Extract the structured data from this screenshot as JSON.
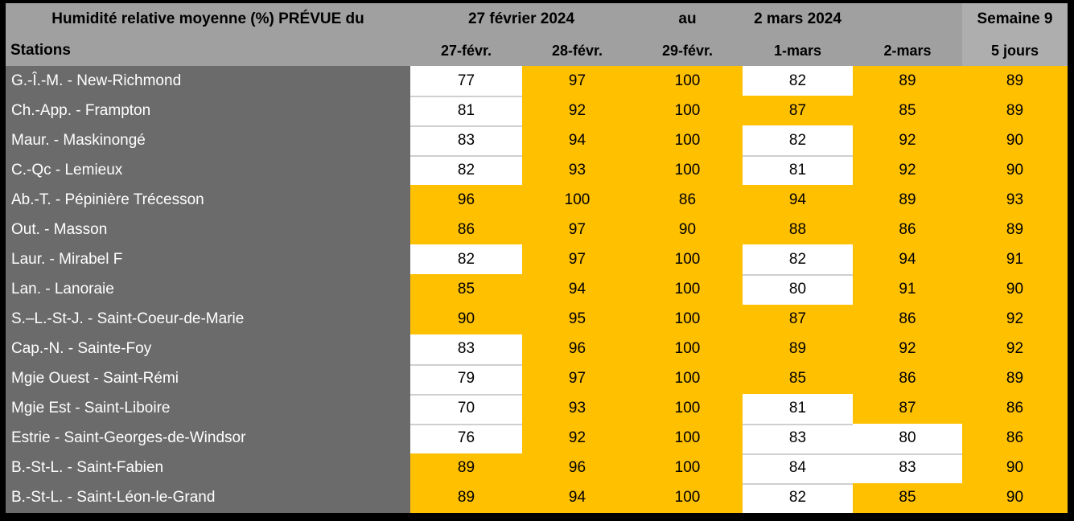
{
  "colors": {
    "highlight_orange": "#ffc000",
    "header_gray": "#a0a0a0",
    "week_header_gray": "#aeaeae",
    "station_column_gray": "#6b6b6b",
    "outer_border_black": "#000000",
    "white_cell": "#ffffff",
    "gridline_gray": "#cfcfcf"
  },
  "header": {
    "title": "Humidité relative moyenne (%) PRÉVUE du",
    "period_start": "27 février 2024",
    "period_connector": "au",
    "period_end": "2 mars 2024",
    "week_label": "Semaine 9",
    "stations_label": "Stations",
    "day_labels": [
      "27-févr.",
      "28-févr.",
      "29-févr.",
      "1-mars",
      "2-mars"
    ],
    "summary_label": "5 jours"
  },
  "chart_data": {
    "type": "table",
    "title": "Humidité relative moyenne (%) PRÉVUE du 27 février 2024 au 2 mars 2024 - Semaine 9",
    "columns": [
      "Stations",
      "27-févr.",
      "28-févr.",
      "29-févr.",
      "1-mars",
      "2-mars",
      "5 jours"
    ],
    "value_unit": "% relative humidity",
    "rows": [
      {
        "station": "G.-Î.-M. - New-Richmond",
        "values": [
          77,
          97,
          100,
          82,
          89,
          89
        ],
        "white": [
          true,
          false,
          false,
          true,
          false,
          false
        ]
      },
      {
        "station": "Ch.-App. - Frampton",
        "values": [
          81,
          92,
          100,
          87,
          85,
          89
        ],
        "white": [
          true,
          false,
          false,
          false,
          false,
          false
        ]
      },
      {
        "station": "Maur. - Maskinongé",
        "values": [
          83,
          94,
          100,
          82,
          92,
          90
        ],
        "white": [
          true,
          false,
          false,
          true,
          false,
          false
        ]
      },
      {
        "station": "C.-Qc - Lemieux",
        "values": [
          82,
          93,
          100,
          81,
          92,
          90
        ],
        "white": [
          true,
          false,
          false,
          true,
          false,
          false
        ]
      },
      {
        "station": "Ab.-T. - Pépinière Trécesson",
        "values": [
          96,
          100,
          86,
          94,
          89,
          93
        ],
        "white": [
          false,
          false,
          false,
          false,
          false,
          false
        ]
      },
      {
        "station": "Out. - Masson",
        "values": [
          86,
          97,
          90,
          88,
          86,
          89
        ],
        "white": [
          false,
          false,
          false,
          false,
          false,
          false
        ]
      },
      {
        "station": "Laur. - Mirabel F",
        "values": [
          82,
          97,
          100,
          82,
          94,
          91
        ],
        "white": [
          true,
          false,
          false,
          true,
          false,
          false
        ]
      },
      {
        "station": "Lan. - Lanoraie",
        "values": [
          85,
          94,
          100,
          80,
          91,
          90
        ],
        "white": [
          false,
          false,
          false,
          true,
          false,
          false
        ]
      },
      {
        "station": "S.–L.-St-J. - Saint-Coeur-de-Marie",
        "values": [
          90,
          95,
          100,
          87,
          86,
          92
        ],
        "white": [
          false,
          false,
          false,
          false,
          false,
          false
        ]
      },
      {
        "station": "Cap.-N. - Sainte-Foy",
        "values": [
          83,
          96,
          100,
          89,
          92,
          92
        ],
        "white": [
          true,
          false,
          false,
          false,
          false,
          false
        ]
      },
      {
        "station": "Mgie Ouest - Saint-Rémi",
        "values": [
          79,
          97,
          100,
          85,
          86,
          89
        ],
        "white": [
          true,
          false,
          false,
          false,
          false,
          false
        ]
      },
      {
        "station": "Mgie Est - Saint-Liboire",
        "values": [
          70,
          93,
          100,
          81,
          87,
          86
        ],
        "white": [
          true,
          false,
          false,
          true,
          false,
          false
        ]
      },
      {
        "station": "Estrie - Saint-Georges-de-Windsor",
        "values": [
          76,
          92,
          100,
          83,
          80,
          86
        ],
        "white": [
          true,
          false,
          false,
          true,
          true,
          false
        ]
      },
      {
        "station": "B.-St-L. - Saint-Fabien",
        "values": [
          89,
          96,
          100,
          84,
          83,
          90
        ],
        "white": [
          false,
          false,
          false,
          true,
          true,
          false
        ]
      },
      {
        "station": "B.-St-L. - Saint-Léon-le-Grand",
        "values": [
          89,
          94,
          100,
          82,
          85,
          90
        ],
        "white": [
          false,
          false,
          false,
          true,
          false,
          false
        ]
      }
    ]
  }
}
